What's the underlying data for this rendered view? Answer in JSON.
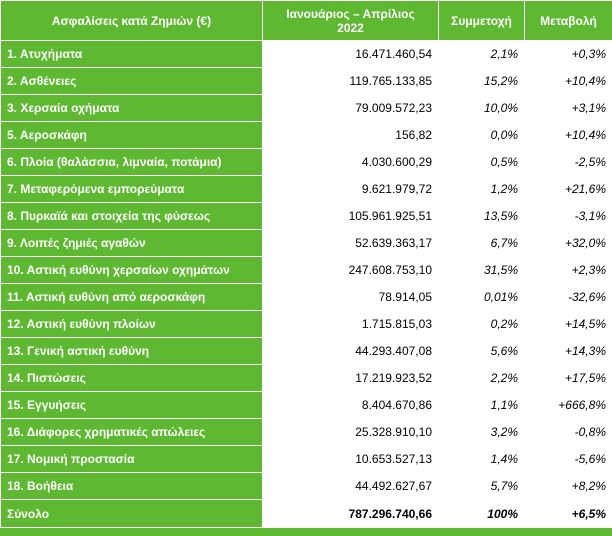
{
  "header": {
    "label_col": "Ασφαλίσεις κατά Ζημιών (€)",
    "period_line1": "Ιανουάριος – Απρίλιος",
    "period_line2": "2022",
    "share_col": "Συμμετοχή",
    "change_col": "Μεταβολή"
  },
  "rows": [
    {
      "label": "1. Ατυχήματα",
      "amount": "16.471.460,54",
      "share": "2,1%",
      "change": "+0,3%"
    },
    {
      "label": "2. Ασθένειες",
      "amount": "119.765.133,85",
      "share": "15,2%",
      "change": "+10,4%"
    },
    {
      "label": "3. Χερσαία οχήματα",
      "amount": "79.009.572,23",
      "share": "10,0%",
      "change": "+3,1%"
    },
    {
      "label": "5. Αεροσκάφη",
      "amount": "156,82",
      "share": "0,0%",
      "change": "+10,4%"
    },
    {
      "label": "6. Πλοία (θαλάσσια, λιμναία, ποτάμια)",
      "amount": "4.030.600,29",
      "share": "0,5%",
      "change": "-2,5%"
    },
    {
      "label": "7. Μεταφερόμενα εμπορεύματα",
      "amount": "9.621.979,72",
      "share": "1,2%",
      "change": "+21,6%"
    },
    {
      "label": "8. Πυρκαϊά και στοιχεία της φύσεως",
      "amount": "105.961.925,51",
      "share": "13,5%",
      "change": "-3,1%"
    },
    {
      "label": "9. Λοιπές ζημιές αγαθών",
      "amount": "52.639.363,17",
      "share": "6,7%",
      "change": "+32,0%"
    },
    {
      "label": "10. Αστική ευθύνη χερσαίων οχημάτων",
      "amount": "247.608.753,10",
      "share": "31,5%",
      "change": "+2,3%"
    },
    {
      "label": "11. Αστική ευθύνη από αεροσκάφη",
      "amount": "78.914,05",
      "share": "0,01%",
      "change": "-32,6%"
    },
    {
      "label": "12. Αστική ευθύνη πλοίων",
      "amount": "1.715.815,03",
      "share": "0,2%",
      "change": "+14,5%"
    },
    {
      "label": "13. Γενική αστική ευθύνη",
      "amount": "44.293.407,08",
      "share": "5,6%",
      "change": "+14,3%"
    },
    {
      "label": "14. Πιστώσεις",
      "amount": "17.219.923,52",
      "share": "2,2%",
      "change": "+17,5%"
    },
    {
      "label": "15. Εγγυήσεις",
      "amount": "8.404.670,86",
      "share": "1,1%",
      "change": "+666,8%"
    },
    {
      "label": "16. Διάφορες χρηματικές απώλειες",
      "amount": "25.328.910,10",
      "share": "3,2%",
      "change": "-0,8%"
    },
    {
      "label": "17. Νομική προστασία",
      "amount": "10.653.527,13",
      "share": "1,4%",
      "change": "-5,6%"
    },
    {
      "label": "18. Βοήθεια",
      "amount": "44.492.627,67",
      "share": "5,7%",
      "change": "+8,2%"
    }
  ],
  "total": {
    "label": "Σύνολο",
    "amount": "787.296.740,66",
    "share": "100%",
    "change": "+6,5%"
  },
  "colors": {
    "background": "#5fb832",
    "cell": "#ffffff",
    "header_text": "#ffffff"
  }
}
